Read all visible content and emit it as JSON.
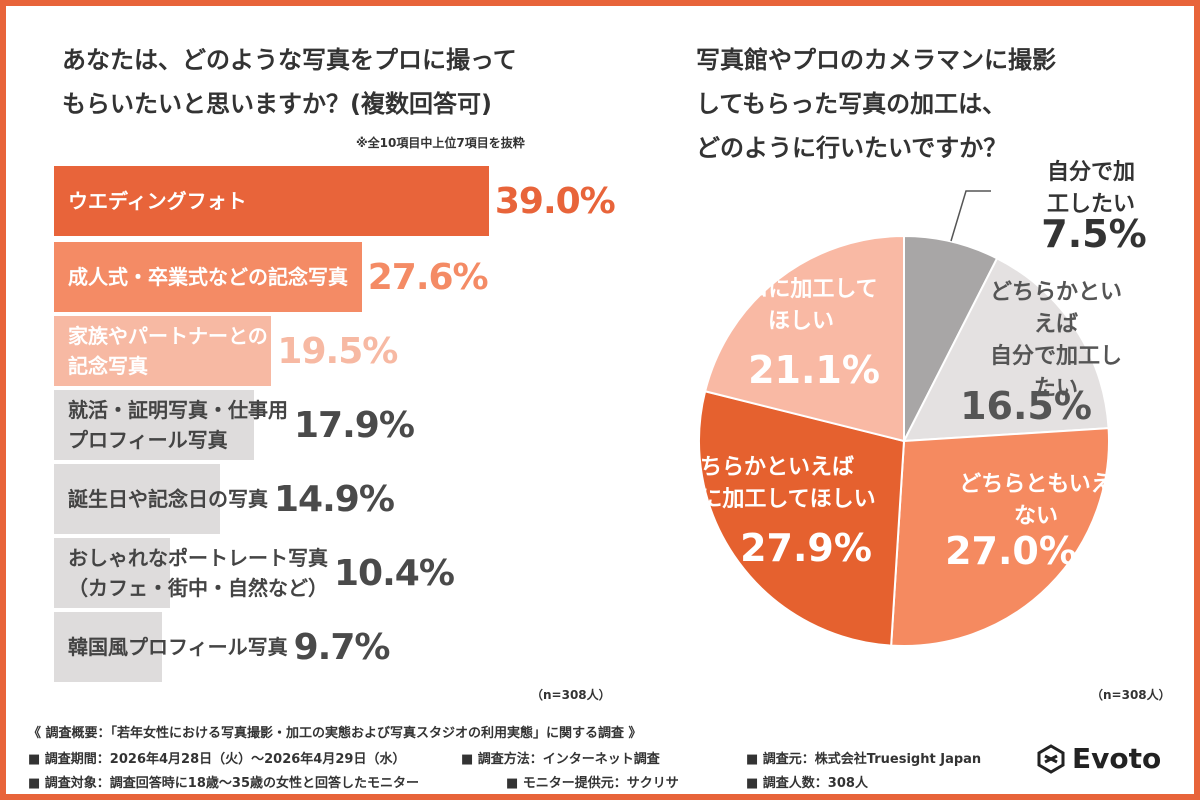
{
  "chart_data": [
    {
      "type": "bar",
      "orientation": "horizontal",
      "title": "あなたは、どのような写真をプロに撮って\nもらいたいと思いますか？(複数回答可)",
      "subtitle": "※全10項目中上位7項目を抜粋",
      "categories": [
        "ウエディングフォト",
        "成人式・卒業式などの記念写真",
        "家族やパートナーとの\n記念写真",
        "就活・証明写真・仕事用\nプロフィール写真",
        "誕生日や記念日の写真",
        "おしゃれなポートレート写真\n（カフェ・街中・自然など）",
        "韓国風プロフィール写真"
      ],
      "values": [
        39.0,
        27.6,
        19.5,
        17.9,
        14.9,
        10.4,
        9.7
      ],
      "value_labels": [
        "39.0%",
        "27.6%",
        "19.5%",
        "17.9%",
        "14.9%",
        "10.4%",
        "9.7%"
      ],
      "colors": [
        "#e8643a",
        "#f48b65",
        "#f7b9a3",
        "#dedcdc",
        "#dedcdc",
        "#dedcdc",
        "#dedcdc"
      ],
      "label_colors": [
        "#e8643a",
        "#f48b65",
        "#f7b9a3",
        "#4a4a4a",
        "#4a4a4a",
        "#4a4a4a",
        "#4a4a4a"
      ],
      "xlim": [
        0,
        40
      ],
      "note": "（n=308人）"
    },
    {
      "type": "pie",
      "title": "写真館やプロのカメラマンに撮影\nしてもらった写真の加工は、\nどのように行いたいですか？",
      "categories": [
        "自分で加工したい",
        "どちらかといえば\n自分で加工したい",
        "どちらともいえない",
        "どちらかといえば\nプロに加工してほしい",
        "プロに加工して\nほしい"
      ],
      "values": [
        7.5,
        16.5,
        27.0,
        27.9,
        21.1
      ],
      "value_labels": [
        "7.5%",
        "16.5%",
        "27.0%",
        "27.9%",
        "21.1%"
      ],
      "colors": [
        "#a8a6a6",
        "#e4e1e1",
        "#f58a60",
        "#e5612f",
        "#f9b9a4"
      ],
      "note": "（n=308人）"
    }
  ],
  "footer": {
    "heading": "《 調査概要：「若年女性における写真撮影・加工の実態および写真スタジオの利用実態」に関する調査 》",
    "items": [
      "■ 調査期間：2026年4月28日（火）〜2026年4月29日（水）",
      "■ 調査方法：インターネット調査",
      "■ 調査元：株式会社Truesight Japan",
      "■ 調査対象：調査回答時に18歳〜35歳の女性と回答したモニター",
      "■ モニター提供元：サクリサ",
      "■ 調査人数：308人"
    ]
  },
  "logo": "Evoto"
}
